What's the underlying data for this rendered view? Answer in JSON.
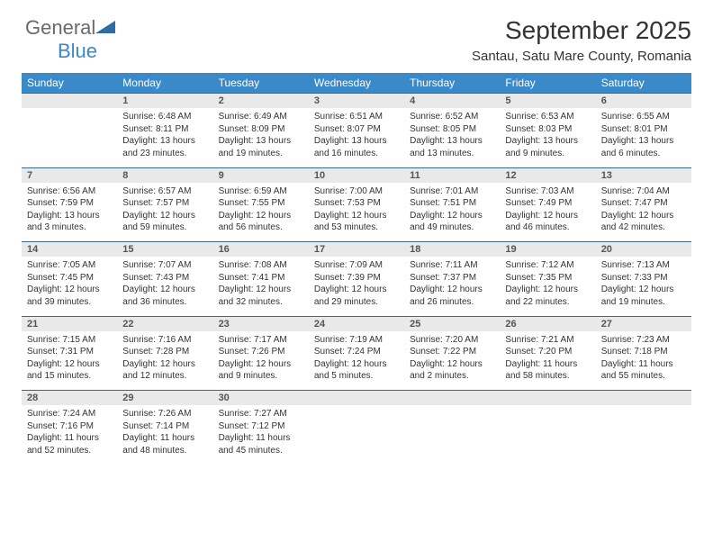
{
  "brand": {
    "general": "General",
    "blue": "Blue"
  },
  "title": "September 2025",
  "location": "Santau, Satu Mare County, Romania",
  "colors": {
    "header_bg": "#3a89c9",
    "header_text": "#ffffff",
    "daynum_bg": "#e9e9e9",
    "border": "#3a6b8c",
    "text": "#333333",
    "logo_gray": "#6a6a6a",
    "logo_blue": "#3a89c9"
  },
  "weekdays": [
    "Sunday",
    "Monday",
    "Tuesday",
    "Wednesday",
    "Thursday",
    "Friday",
    "Saturday"
  ],
  "weeks": [
    [
      null,
      {
        "n": "1",
        "sr": "6:48 AM",
        "ss": "8:11 PM",
        "dl": "13 hours and 23 minutes."
      },
      {
        "n": "2",
        "sr": "6:49 AM",
        "ss": "8:09 PM",
        "dl": "13 hours and 19 minutes."
      },
      {
        "n": "3",
        "sr": "6:51 AM",
        "ss": "8:07 PM",
        "dl": "13 hours and 16 minutes."
      },
      {
        "n": "4",
        "sr": "6:52 AM",
        "ss": "8:05 PM",
        "dl": "13 hours and 13 minutes."
      },
      {
        "n": "5",
        "sr": "6:53 AM",
        "ss": "8:03 PM",
        "dl": "13 hours and 9 minutes."
      },
      {
        "n": "6",
        "sr": "6:55 AM",
        "ss": "8:01 PM",
        "dl": "13 hours and 6 minutes."
      }
    ],
    [
      {
        "n": "7",
        "sr": "6:56 AM",
        "ss": "7:59 PM",
        "dl": "13 hours and 3 minutes."
      },
      {
        "n": "8",
        "sr": "6:57 AM",
        "ss": "7:57 PM",
        "dl": "12 hours and 59 minutes."
      },
      {
        "n": "9",
        "sr": "6:59 AM",
        "ss": "7:55 PM",
        "dl": "12 hours and 56 minutes."
      },
      {
        "n": "10",
        "sr": "7:00 AM",
        "ss": "7:53 PM",
        "dl": "12 hours and 53 minutes."
      },
      {
        "n": "11",
        "sr": "7:01 AM",
        "ss": "7:51 PM",
        "dl": "12 hours and 49 minutes."
      },
      {
        "n": "12",
        "sr": "7:03 AM",
        "ss": "7:49 PM",
        "dl": "12 hours and 46 minutes."
      },
      {
        "n": "13",
        "sr": "7:04 AM",
        "ss": "7:47 PM",
        "dl": "12 hours and 42 minutes."
      }
    ],
    [
      {
        "n": "14",
        "sr": "7:05 AM",
        "ss": "7:45 PM",
        "dl": "12 hours and 39 minutes."
      },
      {
        "n": "15",
        "sr": "7:07 AM",
        "ss": "7:43 PM",
        "dl": "12 hours and 36 minutes."
      },
      {
        "n": "16",
        "sr": "7:08 AM",
        "ss": "7:41 PM",
        "dl": "12 hours and 32 minutes."
      },
      {
        "n": "17",
        "sr": "7:09 AM",
        "ss": "7:39 PM",
        "dl": "12 hours and 29 minutes."
      },
      {
        "n": "18",
        "sr": "7:11 AM",
        "ss": "7:37 PM",
        "dl": "12 hours and 26 minutes."
      },
      {
        "n": "19",
        "sr": "7:12 AM",
        "ss": "7:35 PM",
        "dl": "12 hours and 22 minutes."
      },
      {
        "n": "20",
        "sr": "7:13 AM",
        "ss": "7:33 PM",
        "dl": "12 hours and 19 minutes."
      }
    ],
    [
      {
        "n": "21",
        "sr": "7:15 AM",
        "ss": "7:31 PM",
        "dl": "12 hours and 15 minutes."
      },
      {
        "n": "22",
        "sr": "7:16 AM",
        "ss": "7:28 PM",
        "dl": "12 hours and 12 minutes."
      },
      {
        "n": "23",
        "sr": "7:17 AM",
        "ss": "7:26 PM",
        "dl": "12 hours and 9 minutes."
      },
      {
        "n": "24",
        "sr": "7:19 AM",
        "ss": "7:24 PM",
        "dl": "12 hours and 5 minutes."
      },
      {
        "n": "25",
        "sr": "7:20 AM",
        "ss": "7:22 PM",
        "dl": "12 hours and 2 minutes."
      },
      {
        "n": "26",
        "sr": "7:21 AM",
        "ss": "7:20 PM",
        "dl": "11 hours and 58 minutes."
      },
      {
        "n": "27",
        "sr": "7:23 AM",
        "ss": "7:18 PM",
        "dl": "11 hours and 55 minutes."
      }
    ],
    [
      {
        "n": "28",
        "sr": "7:24 AM",
        "ss": "7:16 PM",
        "dl": "11 hours and 52 minutes."
      },
      {
        "n": "29",
        "sr": "7:26 AM",
        "ss": "7:14 PM",
        "dl": "11 hours and 48 minutes."
      },
      {
        "n": "30",
        "sr": "7:27 AM",
        "ss": "7:12 PM",
        "dl": "11 hours and 45 minutes."
      },
      null,
      null,
      null,
      null
    ]
  ],
  "labels": {
    "sunrise": "Sunrise:",
    "sunset": "Sunset:",
    "daylight": "Daylight:"
  }
}
